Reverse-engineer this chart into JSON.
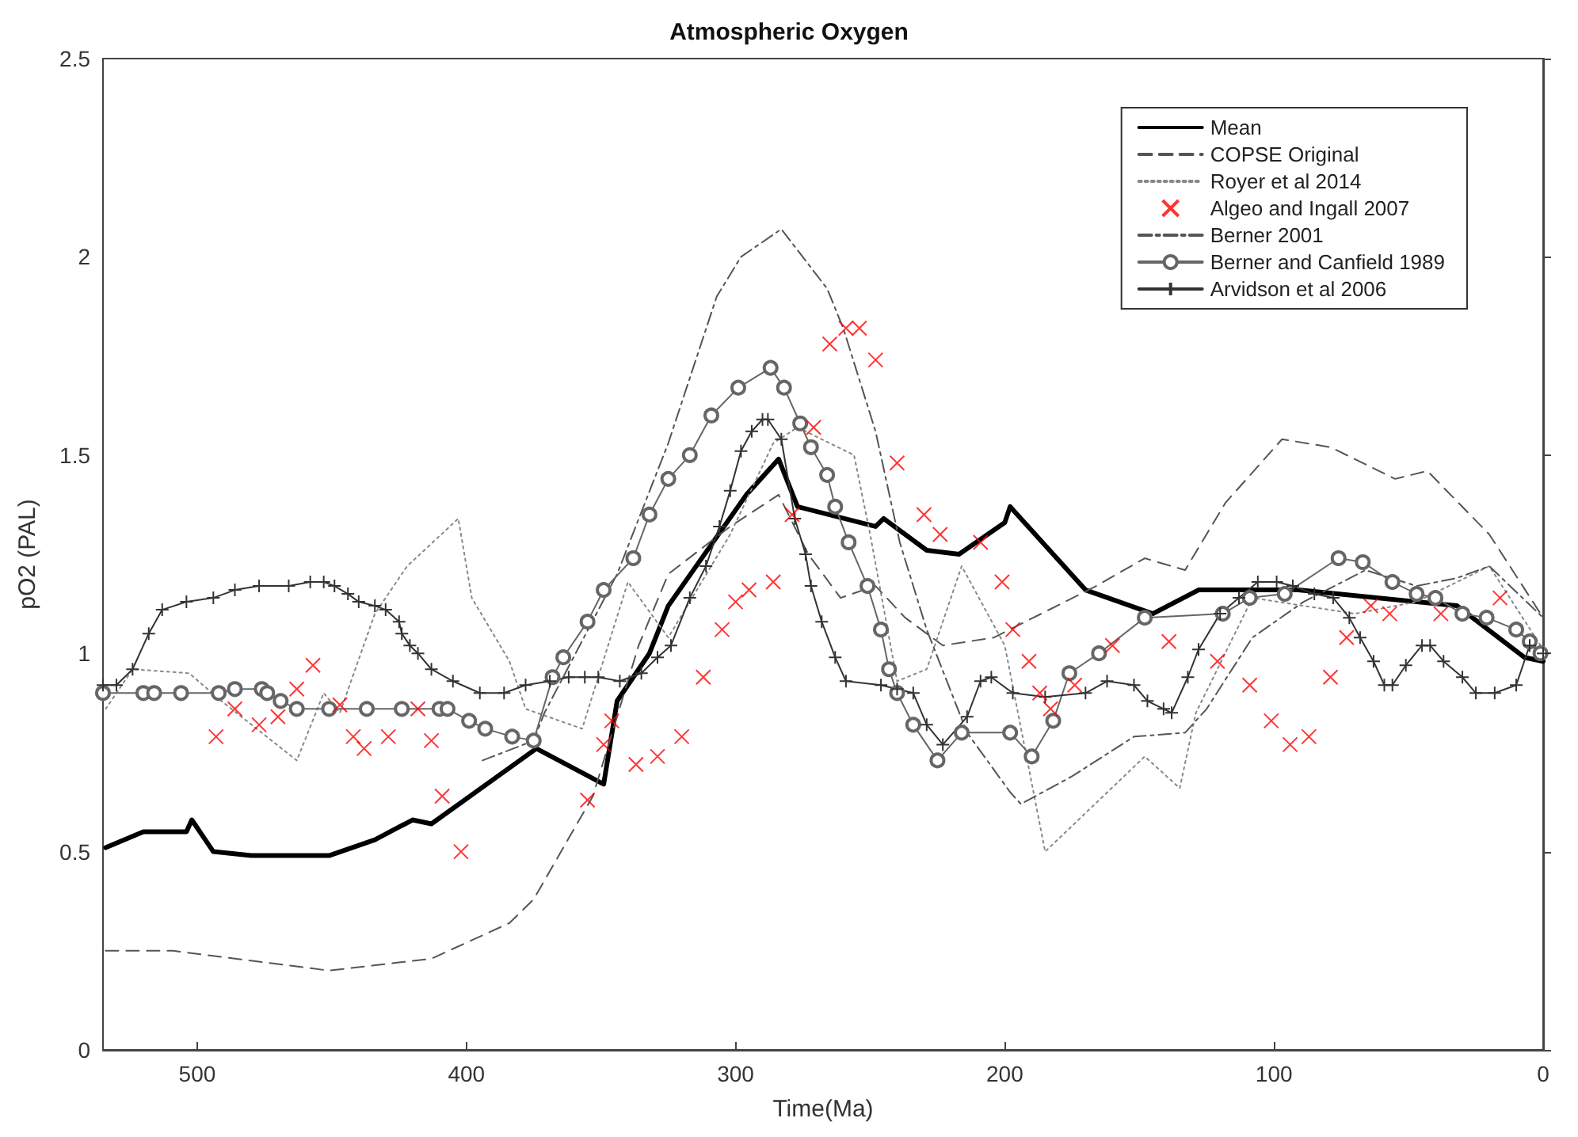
{
  "chart_data": {
    "type": "line",
    "title": "Atmospheric Oxygen",
    "xlabel": "Time(Ma)",
    "ylabel": "pO2 (PAL)",
    "xlim": [
      535,
      0
    ],
    "xticks": [
      500,
      400,
      300,
      200,
      100,
      0
    ],
    "ylim": [
      0,
      2.5
    ],
    "yticks": [
      0,
      0.5,
      1,
      1.5,
      2,
      2.5
    ],
    "grid": false,
    "legend": "top right",
    "series": [
      {
        "name": "Mean",
        "color": "#000000",
        "line_style": "solid",
        "marker": "none",
        "x": [
          534,
          520,
          504,
          502,
          494,
          480,
          451,
          434,
          420,
          413,
          374,
          349,
          344,
          332,
          325,
          296,
          284,
          277,
          248,
          245,
          229,
          217,
          200,
          198,
          170,
          145,
          128,
          91,
          32,
          7,
          0
        ],
        "values": [
          0.51,
          0.55,
          0.55,
          0.58,
          0.5,
          0.49,
          0.49,
          0.53,
          0.58,
          0.57,
          0.76,
          0.67,
          0.88,
          1.0,
          1.12,
          1.4,
          1.49,
          1.37,
          1.32,
          1.34,
          1.26,
          1.25,
          1.33,
          1.37,
          1.16,
          1.1,
          1.16,
          1.16,
          1.12,
          0.99,
          0.98
        ]
      },
      {
        "name": "COPSE Original",
        "color": "#555555",
        "line_style": "dashed",
        "marker": "none",
        "x": [
          534,
          509,
          451,
          413,
          384,
          375,
          353,
          336,
          325,
          302,
          284,
          273,
          261,
          248,
          237,
          223,
          204,
          166,
          148,
          133,
          118,
          97,
          79,
          55,
          43,
          20,
          0
        ],
        "values": [
          0.25,
          0.25,
          0.2,
          0.23,
          0.32,
          0.38,
          0.64,
          1.02,
          1.2,
          1.32,
          1.4,
          1.25,
          1.14,
          1.17,
          1.09,
          1.02,
          1.04,
          1.17,
          1.24,
          1.21,
          1.38,
          1.54,
          1.52,
          1.44,
          1.46,
          1.3,
          1.09
        ]
      },
      {
        "name": "Royer et al 2014",
        "color": "#888888",
        "line_style": "dotted",
        "marker": "none",
        "x": [
          534,
          524,
          503,
          491,
          463,
          453,
          447,
          434,
          422,
          403,
          398,
          384,
          378,
          357,
          340,
          325,
          302,
          286,
          277,
          256,
          250,
          240,
          229,
          216,
          200,
          185,
          148,
          135,
          129,
          108,
          70,
          47,
          20,
          0
        ],
        "values": [
          0.86,
          0.96,
          0.95,
          0.88,
          0.73,
          0.9,
          0.85,
          1.1,
          1.22,
          1.34,
          1.14,
          0.98,
          0.86,
          0.81,
          1.18,
          1.04,
          1.3,
          1.53,
          1.57,
          1.5,
          1.3,
          0.93,
          0.96,
          1.22,
          1.02,
          0.5,
          0.74,
          0.66,
          0.85,
          1.14,
          1.1,
          1.13,
          1.22,
          1.01
        ]
      },
      {
        "name": "Algeo and Ingall 2007",
        "type": "scatter",
        "color": "#ff0000",
        "marker": "cross",
        "x": [
          493,
          486,
          477,
          470,
          463,
          457,
          447,
          442,
          438,
          429,
          418,
          413,
          409,
          402,
          355,
          349,
          346,
          337,
          329,
          320,
          312,
          305,
          300,
          295,
          286,
          279,
          271,
          265,
          259,
          254,
          248,
          240,
          230,
          224,
          209,
          201,
          197,
          191,
          187,
          183,
          174,
          160,
          139,
          121,
          109,
          101,
          94,
          87,
          79,
          73,
          64,
          57,
          38,
          16
        ],
        "values": [
          0.79,
          0.86,
          0.82,
          0.84,
          0.91,
          0.97,
          0.87,
          0.79,
          0.76,
          0.79,
          0.86,
          0.78,
          0.64,
          0.5,
          0.63,
          0.77,
          0.83,
          0.72,
          0.74,
          0.79,
          0.94,
          1.06,
          1.13,
          1.16,
          1.18,
          1.35,
          1.57,
          1.78,
          1.82,
          1.82,
          1.74,
          1.48,
          1.35,
          1.3,
          1.28,
          1.18,
          1.06,
          0.98,
          0.9,
          0.86,
          0.92,
          1.02,
          1.03,
          0.98,
          0.92,
          0.83,
          0.77,
          0.79,
          0.94,
          1.04,
          1.12,
          1.1,
          1.1,
          1.14
        ]
      },
      {
        "name": "Berner 2001",
        "color": "#555555",
        "line_style": "dashdot",
        "marker": "none",
        "x": [
          394,
          375,
          371,
          344,
          325,
          307,
          298,
          283,
          266,
          260,
          248,
          239,
          229,
          214,
          198,
          194,
          175,
          152,
          133,
          125,
          108,
          89,
          66,
          47,
          32,
          20,
          0
        ],
        "values": [
          0.73,
          0.78,
          0.85,
          1.2,
          1.53,
          1.9,
          2.0,
          2.07,
          1.92,
          1.82,
          1.56,
          1.28,
          1.06,
          0.8,
          0.65,
          0.62,
          0.69,
          0.79,
          0.8,
          0.86,
          1.04,
          1.13,
          1.21,
          1.17,
          1.19,
          1.22,
          1.09
        ]
      },
      {
        "name": "Berner and Canfield 1989",
        "color": "#666666",
        "line_style": "solid",
        "marker": "circle",
        "x": [
          535,
          520,
          516,
          506,
          492,
          486,
          476,
          474,
          469,
          463,
          451,
          437,
          424,
          410,
          407,
          399,
          393,
          383,
          375,
          368,
          364,
          355,
          349,
          338,
          332,
          325,
          317,
          309,
          299,
          287,
          282,
          276,
          272,
          266,
          263,
          258,
          251,
          246,
          243,
          240,
          234,
          225,
          216,
          198,
          190,
          182,
          176,
          165,
          148,
          119,
          109,
          96,
          76,
          67,
          56,
          47,
          40,
          30,
          21,
          10,
          5,
          1
        ],
        "values": [
          0.9,
          0.9,
          0.9,
          0.9,
          0.9,
          0.91,
          0.91,
          0.9,
          0.88,
          0.86,
          0.86,
          0.86,
          0.86,
          0.86,
          0.86,
          0.83,
          0.81,
          0.79,
          0.78,
          0.94,
          0.99,
          1.08,
          1.16,
          1.24,
          1.35,
          1.44,
          1.5,
          1.6,
          1.67,
          1.72,
          1.67,
          1.58,
          1.52,
          1.45,
          1.37,
          1.28,
          1.17,
          1.06,
          0.96,
          0.9,
          0.82,
          0.73,
          0.8,
          0.8,
          0.74,
          0.83,
          0.95,
          1.0,
          1.09,
          1.1,
          1.14,
          1.15,
          1.24,
          1.23,
          1.18,
          1.15,
          1.14,
          1.1,
          1.09,
          1.06,
          1.03,
          1.0
        ]
      },
      {
        "name": "Arvidson et al 2006",
        "color": "#333333",
        "line_style": "solid",
        "marker": "plus",
        "x": [
          535,
          530,
          524,
          518,
          513,
          504,
          494,
          486,
          477,
          466,
          458,
          453,
          449,
          444,
          440,
          434,
          430,
          425,
          424,
          421,
          418,
          413,
          405,
          395,
          386,
          378,
          369,
          362,
          356,
          351,
          343,
          335,
          329,
          324,
          317,
          311,
          306,
          302,
          298,
          294,
          290,
          288,
          283,
          278,
          274,
          272,
          268,
          263,
          259,
          246,
          240,
          234,
          229,
          223,
          214,
          209,
          205,
          197,
          185,
          170,
          162,
          152,
          147,
          141,
          138,
          132,
          128,
          120,
          113,
          106,
          99,
          93,
          85,
          78,
          72,
          68,
          63,
          59,
          56,
          51,
          45,
          42,
          37,
          30,
          25,
          18,
          10,
          5,
          0
        ],
        "values": [
          0.92,
          0.92,
          0.96,
          1.05,
          1.11,
          1.13,
          1.14,
          1.16,
          1.17,
          1.17,
          1.18,
          1.18,
          1.17,
          1.15,
          1.13,
          1.12,
          1.11,
          1.08,
          1.05,
          1.02,
          1.0,
          0.96,
          0.93,
          0.9,
          0.9,
          0.92,
          0.93,
          0.94,
          0.94,
          0.94,
          0.93,
          0.95,
          0.99,
          1.02,
          1.14,
          1.22,
          1.32,
          1.41,
          1.51,
          1.56,
          1.59,
          1.59,
          1.54,
          1.34,
          1.25,
          1.17,
          1.08,
          0.99,
          0.93,
          0.92,
          0.91,
          0.9,
          0.82,
          0.77,
          0.84,
          0.93,
          0.94,
          0.9,
          0.89,
          0.9,
          0.93,
          0.92,
          0.88,
          0.86,
          0.85,
          0.94,
          1.01,
          1.1,
          1.14,
          1.18,
          1.18,
          1.17,
          1.15,
          1.14,
          1.09,
          1.04,
          0.98,
          0.92,
          0.92,
          0.97,
          1.02,
          1.02,
          0.98,
          0.94,
          0.9,
          0.9,
          0.92,
          1.02,
          1.0
        ]
      }
    ]
  }
}
